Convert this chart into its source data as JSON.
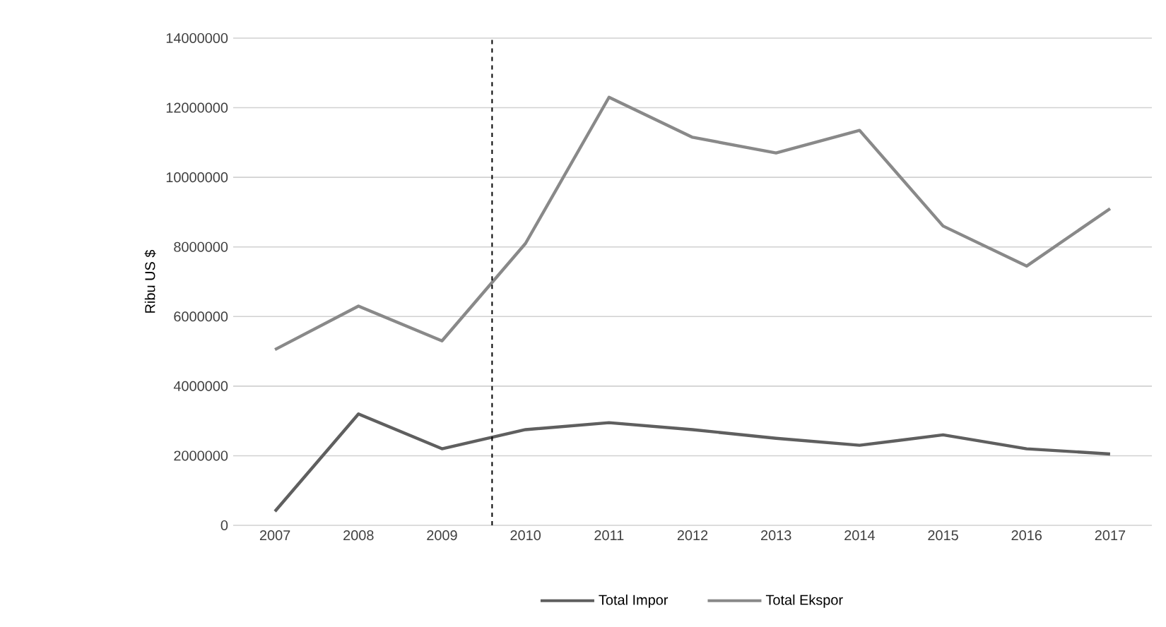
{
  "chart_data": {
    "type": "line",
    "ylabel": "Ribu US $",
    "x": [
      2007,
      2008,
      2009,
      2010,
      2011,
      2012,
      2013,
      2014,
      2015,
      2016,
      2017
    ],
    "series": [
      {
        "name": "Total Impor",
        "color": "#5f5f5f",
        "values": [
          400000,
          3200000,
          2200000,
          2750000,
          2950000,
          2750000,
          2500000,
          2300000,
          2600000,
          2200000,
          2050000
        ]
      },
      {
        "name": "Total Ekspor",
        "color": "#898989",
        "values": [
          5050000,
          6300000,
          5300000,
          8100000,
          12300000,
          11150000,
          10700000,
          11350000,
          8600000,
          7450000,
          9100000
        ]
      }
    ],
    "xlim": [
      2006.5,
      2017.5
    ],
    "xticks": [
      2007,
      2008,
      2009,
      2010,
      2011,
      2012,
      2013,
      2014,
      2015,
      2016,
      2017
    ],
    "ylim": [
      0,
      14000000
    ],
    "yticks": [
      0,
      2000000,
      4000000,
      6000000,
      8000000,
      10000000,
      12000000,
      14000000
    ],
    "ref_lines": [
      {
        "axis": "x",
        "value": 2009.6,
        "color": "#000000",
        "line_style": "dashed"
      }
    ],
    "grid": "y",
    "legend": "bottom",
    "marker": "none",
    "line_style": "solid"
  }
}
